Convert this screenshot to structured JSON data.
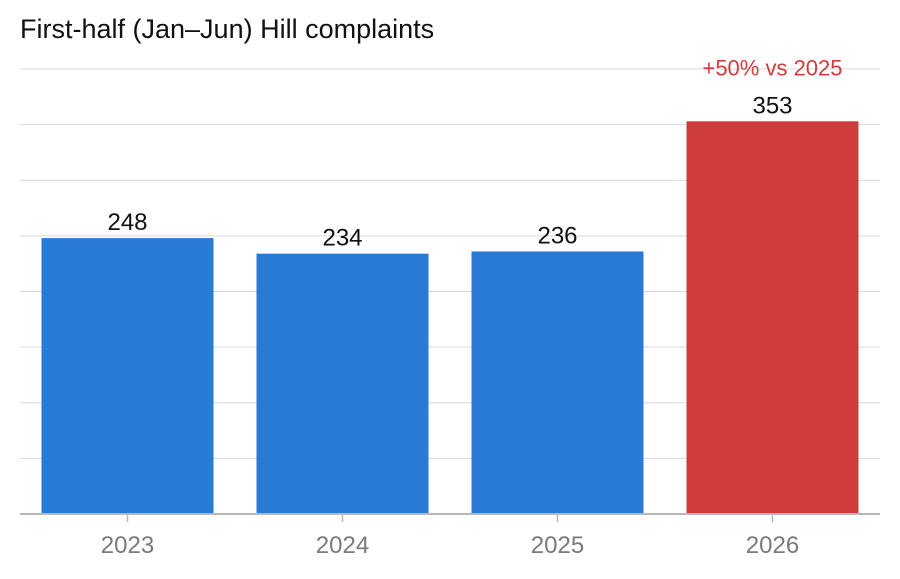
{
  "chart_data": {
    "type": "bar",
    "title": "First-half (Jan–Jun) Hill complaints",
    "xlabel": "",
    "ylabel": "",
    "categories": [
      "2023",
      "2024",
      "2025",
      "2026"
    ],
    "values": [
      248,
      234,
      236,
      353
    ],
    "data_labels": [
      "248",
      "234",
      "236",
      "353"
    ],
    "ylim": [
      0,
      400
    ],
    "grid": true,
    "highlight_index": 3,
    "annotations": [
      {
        "category": "2026",
        "text": "+50% vs 2025"
      }
    ],
    "colors": {
      "bar": "#2979d6",
      "highlight": "#d03c3c",
      "annotation": "#d03c3c"
    }
  }
}
